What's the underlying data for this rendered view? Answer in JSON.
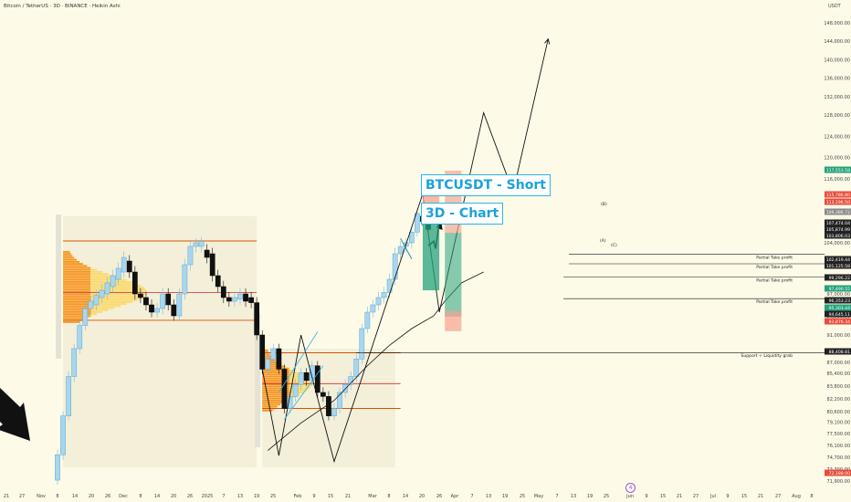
{
  "header": {
    "symbol_line": "Bitcoin / TetherUS · 3D · BINANCE · Heikin Ashi"
  },
  "axis": {
    "currency": "USDT"
  },
  "annotations": {
    "title": "BTCUSDT - Short",
    "subtitle": "3D - Chart",
    "wave_b": "(B)",
    "wave_a": "(A)",
    "wave_c": "(C)"
  },
  "colors": {
    "background": "#fdfbe8",
    "bull_candle": "#a9d6ee",
    "bear_candle": "#111111",
    "volume_profile": "#f7941d",
    "level_line": "#d35400",
    "entry_red": "#f5a28e",
    "target_green": "#26a17b",
    "price_badge_green": "#26a17b",
    "price_badge_red": "#e74c3c"
  },
  "chart_data": {
    "type": "candlestick",
    "style": "Heikin Ashi",
    "y_axis": {
      "unit": "USDT",
      "ticks": [
        "148,000.00",
        "144,000.00",
        "140,000.00",
        "136,000.00",
        "132,000.00",
        "128,000.00",
        "124,000.00",
        "120,000.00",
        "116,000.00",
        "112,000.00",
        "108,000.00",
        "104,000.00",
        "101,000.00",
        "97,000.00",
        "94,000.00",
        "91,000.00",
        "87,000.00",
        "85,400.00",
        "83,800.00",
        "82,200.00",
        "80,600.00",
        "79,100.00",
        "77,500.00",
        "76,100.00",
        "74,700.00",
        "73,300.00",
        "71,900.00"
      ]
    },
    "x_axis": {
      "ticks": [
        "21",
        "27",
        "Nov",
        "8",
        "14",
        "20",
        "26",
        "Dec",
        "8",
        "14",
        "20",
        "26",
        "2025",
        "7",
        "13",
        "19",
        "25",
        "Feb",
        "9",
        "15",
        "21",
        "Mar",
        "8",
        "14",
        "20",
        "26",
        "Apr",
        "7",
        "13",
        "19",
        "25",
        "May",
        "7",
        "13",
        "19",
        "25",
        "Jun",
        "9",
        "15",
        "21",
        "27",
        "Jul",
        "9",
        "15",
        "21",
        "27",
        "Aug",
        "8"
      ]
    },
    "price_labels": [
      {
        "value": "117,553.58",
        "kind": "green"
      },
      {
        "value": "115,786.80",
        "kind": "red"
      },
      {
        "value": "113,196.50",
        "kind": "red"
      },
      {
        "value": "109,386.72",
        "kind": "gray"
      },
      {
        "value": "107,474.04",
        "kind": "dark"
      },
      {
        "value": "105,874.99",
        "kind": "dark"
      },
      {
        "value": "103,806.03",
        "kind": "dark"
      },
      {
        "value": "102,419.44",
        "kind": "dark"
      },
      {
        "value": "101,125.58",
        "kind": "dark"
      },
      {
        "value": "99,296.22",
        "kind": "dark"
      },
      {
        "value": "97,490.55",
        "kind": "green"
      },
      {
        "value": "96,353.23",
        "kind": "dark"
      },
      {
        "value": "95,303.44",
        "kind": "green"
      },
      {
        "value": "94,645.11",
        "kind": "dark"
      },
      {
        "value": "93,876.34",
        "kind": "red"
      },
      {
        "value": "88,408.81",
        "kind": "dark"
      },
      {
        "value": "72,188.00",
        "kind": "red"
      }
    ],
    "levels": [
      {
        "label": "Partial Take profit",
        "price": 102419.44
      },
      {
        "label": "Partial Take profit",
        "price": 101125.58
      },
      {
        "label": "Partial Take profit",
        "price": 99296.22
      },
      {
        "label": "Partial Take profit",
        "price": 96353.23
      },
      {
        "label": "Support + Liquidity grab",
        "price": 88408.81
      }
    ],
    "candles": [
      {
        "date": "2024-11-08",
        "open": 72000,
        "close": 75000
      },
      {
        "date": "2024-11-11",
        "open": 75000,
        "close": 80000
      },
      {
        "date": "2024-11-14",
        "open": 80000,
        "close": 85000
      },
      {
        "date": "2024-11-17",
        "open": 85000,
        "close": 89000
      },
      {
        "date": "2024-11-20",
        "open": 89000,
        "close": 92500
      },
      {
        "date": "2024-11-23",
        "open": 92500,
        "close": 95000
      },
      {
        "date": "2024-11-26",
        "open": 95000,
        "close": 96000
      },
      {
        "date": "2024-11-29",
        "open": 95500,
        "close": 96800
      },
      {
        "date": "2024-12-02",
        "open": 96500,
        "close": 97500
      },
      {
        "date": "2024-12-05",
        "open": 97000,
        "close": 98500
      },
      {
        "date": "2024-12-08",
        "open": 98000,
        "close": 99500
      },
      {
        "date": "2024-12-11",
        "open": 99000,
        "close": 100500
      },
      {
        "date": "2024-12-14",
        "open": 100000,
        "close": 102000
      },
      {
        "date": "2024-12-17",
        "open": 101500,
        "close": 100000
      },
      {
        "date": "2024-12-20",
        "open": 100000,
        "close": 97000
      },
      {
        "date": "2024-12-23",
        "open": 97000,
        "close": 96500
      },
      {
        "date": "2024-12-26",
        "open": 96500,
        "close": 95500
      },
      {
        "date": "2024-12-29",
        "open": 95500,
        "close": 94500
      },
      {
        "date": "2025-01-01",
        "open": 94500,
        "close": 95000
      },
      {
        "date": "2025-01-04",
        "open": 95000,
        "close": 97000
      },
      {
        "date": "2025-01-07",
        "open": 97000,
        "close": 95500
      },
      {
        "date": "2025-01-10",
        "open": 95500,
        "close": 94000
      },
      {
        "date": "2025-01-13",
        "open": 94000,
        "close": 97000
      },
      {
        "date": "2025-01-16",
        "open": 97000,
        "close": 101000
      },
      {
        "date": "2025-01-19",
        "open": 101000,
        "close": 103500
      },
      {
        "date": "2025-01-22",
        "open": 103500,
        "close": 104000
      },
      {
        "date": "2025-01-25",
        "open": 103500,
        "close": 104300
      },
      {
        "date": "2025-01-28",
        "open": 103000,
        "close": 102000
      },
      {
        "date": "2025-01-31",
        "open": 102500,
        "close": 99500
      },
      {
        "date": "2025-02-03",
        "open": 99500,
        "close": 98000
      },
      {
        "date": "2025-02-06",
        "open": 98000,
        "close": 96500
      },
      {
        "date": "2025-02-09",
        "open": 96500,
        "close": 96000
      },
      {
        "date": "2025-02-12",
        "open": 96000,
        "close": 96500
      },
      {
        "date": "2025-02-15",
        "open": 96300,
        "close": 97000
      },
      {
        "date": "2025-02-18",
        "open": 97000,
        "close": 96000
      },
      {
        "date": "2025-02-21",
        "open": 96500,
        "close": 95800
      },
      {
        "date": "2025-02-24",
        "open": 95800,
        "close": 91000
      },
      {
        "date": "2025-02-27",
        "open": 91000,
        "close": 86000
      },
      {
        "date": "2025-03-02",
        "open": 86000,
        "close": 87500
      },
      {
        "date": "2025-03-05",
        "open": 87500,
        "close": 89000
      },
      {
        "date": "2025-03-08",
        "open": 89000,
        "close": 86000
      },
      {
        "date": "2025-03-11",
        "open": 86000,
        "close": 81000
      },
      {
        "date": "2025-03-14",
        "open": 81000,
        "close": 82500
      },
      {
        "date": "2025-03-17",
        "open": 82500,
        "close": 84000
      },
      {
        "date": "2025-03-20",
        "open": 84000,
        "close": 85500
      },
      {
        "date": "2025-03-23",
        "open": 85500,
        "close": 84500
      },
      {
        "date": "2025-03-26",
        "open": 84500,
        "close": 86500
      },
      {
        "date": "2025-03-29",
        "open": 86500,
        "close": 83000
      },
      {
        "date": "2025-04-01",
        "open": 83000,
        "close": 82500
      },
      {
        "date": "2025-04-04",
        "open": 82500,
        "close": 80000
      },
      {
        "date": "2025-04-07",
        "open": 80000,
        "close": 81000
      },
      {
        "date": "2025-04-10",
        "open": 81000,
        "close": 83000
      },
      {
        "date": "2025-04-13",
        "open": 83000,
        "close": 84000
      },
      {
        "date": "2025-04-16",
        "open": 84000,
        "close": 85000
      },
      {
        "date": "2025-04-19",
        "open": 85000,
        "close": 87500
      },
      {
        "date": "2025-04-22",
        "open": 87500,
        "close": 92000
      },
      {
        "date": "2025-04-25",
        "open": 92000,
        "close": 94500
      },
      {
        "date": "2025-04-28",
        "open": 94500,
        "close": 95500
      },
      {
        "date": "2025-05-01",
        "open": 95500,
        "close": 96500
      },
      {
        "date": "2025-05-04",
        "open": 96500,
        "close": 97200
      },
      {
        "date": "2025-05-07",
        "open": 97200,
        "close": 99000
      },
      {
        "date": "2025-05-10",
        "open": 99000,
        "close": 102500
      },
      {
        "date": "2025-05-13",
        "open": 102500,
        "close": 103500
      },
      {
        "date": "2025-05-16",
        "open": 103500,
        "close": 104000
      },
      {
        "date": "2025-05-19",
        "open": 104000,
        "close": 106000
      },
      {
        "date": "2025-05-22",
        "open": 106000,
        "close": 109500
      },
      {
        "date": "2025-05-25",
        "open": 109000,
        "close": 108000
      },
      {
        "date": "2025-05-28",
        "open": 108000,
        "close": 106500
      }
    ],
    "moving_average": [
      {
        "date": "2025-03-02",
        "value": 75500
      },
      {
        "date": "2025-03-20",
        "value": 79000
      },
      {
        "date": "2025-04-07",
        "value": 82000
      },
      {
        "date": "2025-04-25",
        "value": 86500
      },
      {
        "date": "2025-05-07",
        "value": 89500
      },
      {
        "date": "2025-05-19",
        "value": 92000
      },
      {
        "date": "2025-05-31",
        "value": 94000
      },
      {
        "date": "2025-06-06",
        "value": 96000
      },
      {
        "date": "2025-06-15",
        "value": 98500
      },
      {
        "date": "2025-06-27",
        "value": 100000
      }
    ],
    "projection_path": [
      {
        "date": "2025-05-25",
        "value": 113200
      },
      {
        "date": "2025-06-03",
        "value": 94500
      },
      {
        "date": "2025-06-27",
        "value": 128500
      },
      {
        "date": "2025-07-13",
        "value": 113500
      },
      {
        "date": "2025-08-01",
        "value": 144500
      }
    ],
    "zigzag_paths": [
      [
        {
          "date": "2025-02-27",
          "value": 86000
        },
        {
          "date": "2025-03-08",
          "value": 74900
        },
        {
          "date": "2025-03-20",
          "value": 91000
        },
        {
          "date": "2025-04-07",
          "value": 74200
        },
        {
          "date": "2025-05-25",
          "value": 113200
        }
      ],
      [
        {
          "date": "2025-05-13",
          "value": 104800
        },
        {
          "date": "2025-05-19",
          "value": 101800
        }
      ]
    ],
    "trade_boxes": [
      {
        "from": "2025-05-25",
        "to": "2025-06-03",
        "top": 113196.5,
        "entry": 109386.72,
        "bottom": 97490.55
      },
      {
        "from": "2025-06-06",
        "to": "2025-06-15",
        "top": 117553.58,
        "entry": 105874.99,
        "bottom": 93876.34
      }
    ],
    "volume_profiles": [
      {
        "from": "2024-11-11",
        "to": "2025-02-24",
        "high": 109000,
        "low": 73500
      },
      {
        "from": "2025-02-27",
        "to": "2025-05-10",
        "high": 89000,
        "low": 73500
      }
    ]
  }
}
